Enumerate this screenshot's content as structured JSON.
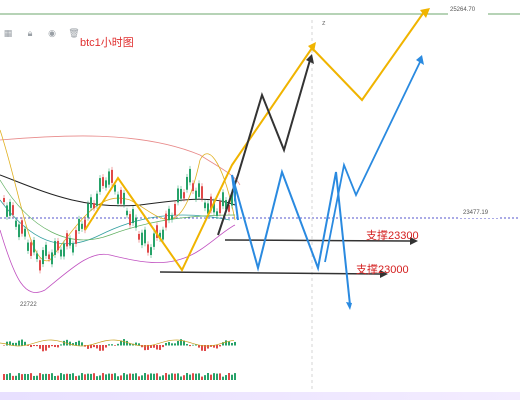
{
  "toolbar": {
    "icons": [
      "grid-icon",
      "lock-icon",
      "eye-icon",
      "trash-icon"
    ]
  },
  "chart_data": {
    "type": "candlestick",
    "title": "btc1小时图",
    "price_labels": {
      "top": "25264.70",
      "mid": "23477.19",
      "low": "22722"
    },
    "annotations": [
      {
        "text": "支撑23300",
        "value": 23300
      },
      {
        "text": "支撑23000",
        "value": 23000
      }
    ],
    "marker": "z"
  }
}
